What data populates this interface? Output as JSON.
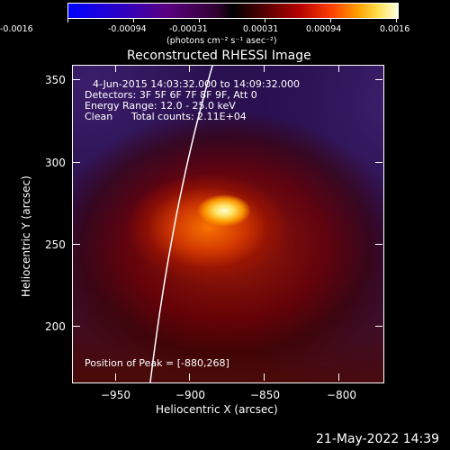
{
  "colorbar": {
    "ticks": [
      "-0.0016",
      "-0.00094",
      "-0.00031",
      "0.00031",
      "0.00094",
      "0.0016"
    ],
    "units": "(photons cm⁻² s⁻¹ asec⁻²)"
  },
  "plot": {
    "title": "Reconstructed RHESSI Image",
    "time_range": "4-Jun-2015 14:03:32.000 to 14:09:32.000",
    "detectors": "Detectors: 3F 5F 6F 7F 8F 9F, Att 0",
    "energy": "Energy Range: 12.0 - 25.0 keV",
    "algo": "Clean",
    "counts": "Total counts: 2.11E+04",
    "peak": "Position of Peak = [-880,268]",
    "xlabel": "Heliocentric X (arcsec)",
    "ylabel": "Heliocentric Y (arcsec)",
    "xticks": [
      "−950",
      "−900",
      "−850",
      "−800"
    ],
    "yticks": [
      "350",
      "300",
      "250",
      "200"
    ]
  },
  "footer": {
    "timestamp": "21-May-2022 14:39"
  }
}
